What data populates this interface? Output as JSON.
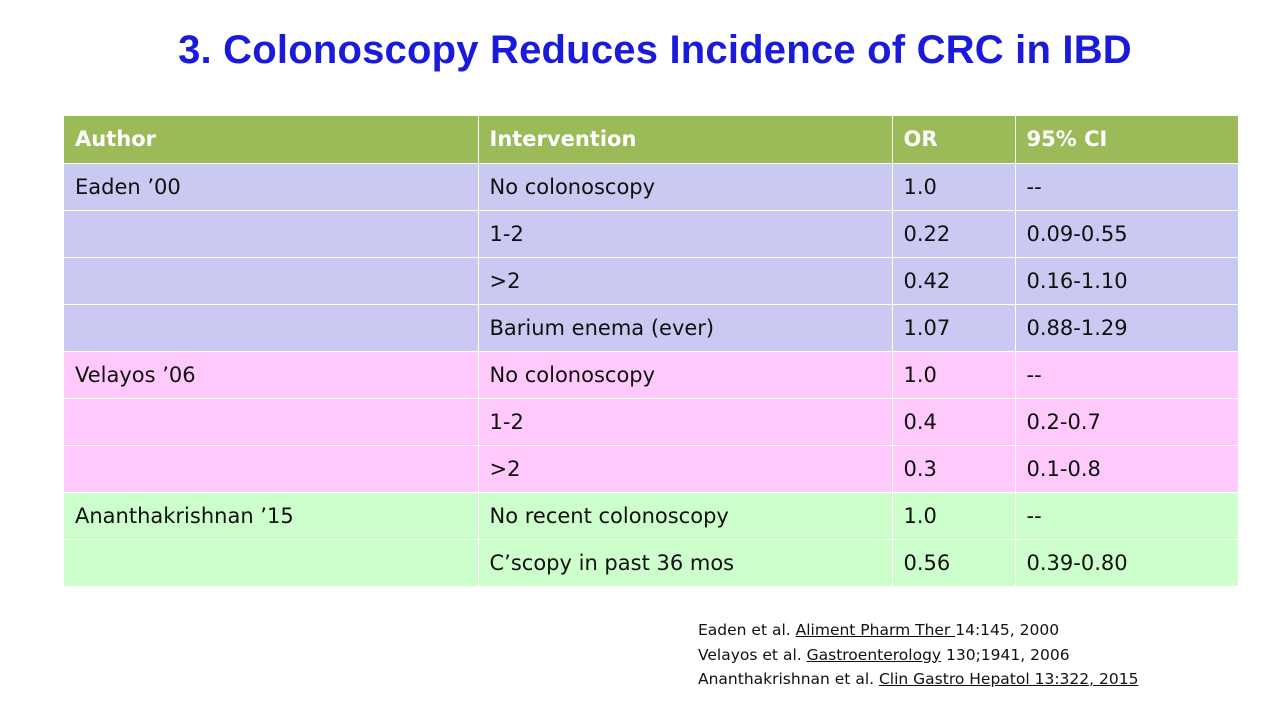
{
  "title": "3.  Colonoscopy Reduces Incidence of CRC in IBD",
  "table": {
    "headers": [
      "Author",
      "Intervention",
      "OR",
      "95% CI"
    ],
    "rows": [
      {
        "group": 1,
        "cells": [
          "Eaden ’00",
          "No colonoscopy",
          "1.0",
          "--"
        ]
      },
      {
        "group": 1,
        "cells": [
          "",
          "1-2",
          "0.22",
          "0.09-0.55"
        ]
      },
      {
        "group": 1,
        "cells": [
          "",
          ">2",
          "0.42",
          "0.16-1.10"
        ]
      },
      {
        "group": 1,
        "cells": [
          "",
          "Barium enema (ever)",
          "1.07",
          "0.88-1.29"
        ]
      },
      {
        "group": 2,
        "cells": [
          "Velayos ’06",
          "No colonoscopy",
          "1.0",
          "--"
        ]
      },
      {
        "group": 2,
        "cells": [
          "",
          "1-2",
          "0.4",
          "0.2-0.7"
        ]
      },
      {
        "group": 2,
        "cells": [
          "",
          ">2",
          "0.3",
          "0.1-0.8"
        ]
      },
      {
        "group": 3,
        "cells": [
          "Ananthakrishnan ’15",
          "No recent colonoscopy",
          "1.0",
          "--"
        ]
      },
      {
        "group": 3,
        "cells": [
          "",
          "C’scopy in past 36 mos",
          "0.56",
          "0.39-0.80"
        ]
      }
    ]
  },
  "references": [
    {
      "prefix": "Eaden et al. ",
      "journal": "Aliment Pharm Ther ",
      "suffix": "14:145, 2000"
    },
    {
      "prefix": "Velayos et al. ",
      "journal": "Gastroenterology",
      "suffix": " 130;1941, 2006"
    },
    {
      "prefix": "Ananthakrishnan et al. ",
      "journal": "Clin Gastro Hepatol  13:322, 2015",
      "suffix": ""
    }
  ],
  "colors": {
    "title": "#1a1adb",
    "header_bg": "#9bbb59",
    "group1_bg": "#c9c9f1",
    "group2_bg": "#ffc9fb",
    "group3_bg": "#ccffcc"
  }
}
